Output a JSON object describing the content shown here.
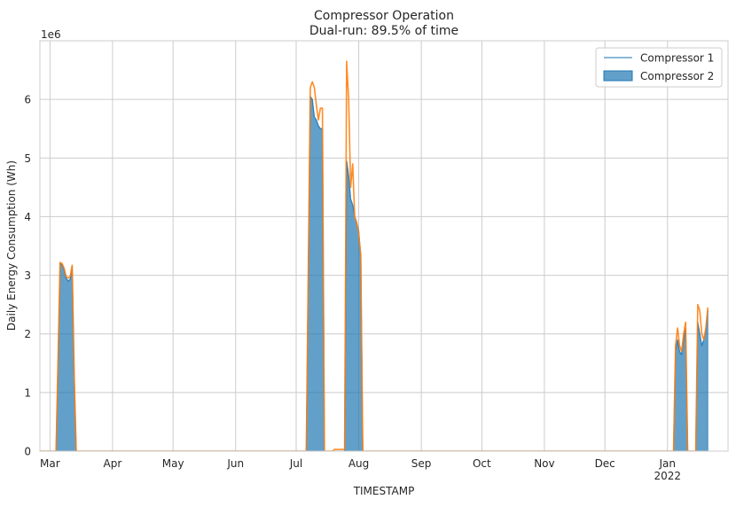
{
  "chart_data": {
    "type": "area",
    "title": "Compressor Operation",
    "subtitle": "Dual-run: 89.5% of time",
    "xlabel": "TIMESTAMP",
    "ylabel": "Daily Energy Consumption (Wh)",
    "y_offset_label": "1e6",
    "ylim": [
      0,
      7000000
    ],
    "xlim": [
      "2021-02-24",
      "2022-01-31"
    ],
    "grid": true,
    "legend_position": "top-right",
    "y_ticks": [
      {
        "value": 0,
        "label": "0"
      },
      {
        "value": 1000000,
        "label": "1"
      },
      {
        "value": 2000000,
        "label": "2"
      },
      {
        "value": 3000000,
        "label": "3"
      },
      {
        "value": 4000000,
        "label": "4"
      },
      {
        "value": 5000000,
        "label": "5"
      },
      {
        "value": 6000000,
        "label": "6"
      }
    ],
    "x_ticks": [
      {
        "date": "2021-03-01",
        "label": "Mar"
      },
      {
        "date": "2021-04-01",
        "label": "Apr"
      },
      {
        "date": "2021-05-01",
        "label": "May"
      },
      {
        "date": "2021-06-01",
        "label": "Jun"
      },
      {
        "date": "2021-07-01",
        "label": "Jul"
      },
      {
        "date": "2021-08-01",
        "label": "Aug"
      },
      {
        "date": "2021-09-01",
        "label": "Sep"
      },
      {
        "date": "2021-10-01",
        "label": "Oct"
      },
      {
        "date": "2021-11-01",
        "label": "Nov"
      },
      {
        "date": "2021-12-01",
        "label": "Dec"
      },
      {
        "date": "2022-01-01",
        "label": "Jan",
        "sublabel": "2022"
      }
    ],
    "series": [
      {
        "name": "Compressor 1",
        "style": "line",
        "color": "#1f77b4",
        "points": [
          [
            "2021-02-24",
            0
          ],
          [
            "2021-03-04",
            0
          ],
          [
            "2021-03-05",
            1500000
          ],
          [
            "2021-03-06",
            3200000
          ],
          [
            "2021-03-07",
            3180000
          ],
          [
            "2021-03-08",
            3100000
          ],
          [
            "2021-03-09",
            2950000
          ],
          [
            "2021-03-10",
            2900000
          ],
          [
            "2021-03-11",
            2930000
          ],
          [
            "2021-03-12",
            3150000
          ],
          [
            "2021-03-13",
            1200000
          ],
          [
            "2021-03-14",
            0
          ],
          [
            "2021-07-06",
            0
          ],
          [
            "2021-07-07",
            3000000
          ],
          [
            "2021-07-08",
            6050000
          ],
          [
            "2021-07-09",
            6000000
          ],
          [
            "2021-07-10",
            5700000
          ],
          [
            "2021-07-11",
            5650000
          ],
          [
            "2021-07-12",
            5550000
          ],
          [
            "2021-07-13",
            5500000
          ],
          [
            "2021-07-14",
            5500000
          ],
          [
            "2021-07-15",
            0
          ],
          [
            "2021-07-25",
            0
          ],
          [
            "2021-07-26",
            4950000
          ],
          [
            "2021-07-27",
            4700000
          ],
          [
            "2021-07-28",
            4300000
          ],
          [
            "2021-07-29",
            4200000
          ],
          [
            "2021-07-30",
            4000000
          ],
          [
            "2021-07-31",
            3900000
          ],
          [
            "2021-08-01",
            3750000
          ],
          [
            "2021-08-02",
            3300000
          ],
          [
            "2021-08-03",
            0
          ],
          [
            "2022-01-04",
            0
          ],
          [
            "2022-01-05",
            1700000
          ],
          [
            "2022-01-06",
            1900000
          ],
          [
            "2022-01-07",
            1700000
          ],
          [
            "2022-01-08",
            1650000
          ],
          [
            "2022-01-09",
            1900000
          ],
          [
            "2022-01-10",
            2100000
          ],
          [
            "2022-01-11",
            0
          ],
          [
            "2022-01-15",
            0
          ],
          [
            "2022-01-16",
            2200000
          ],
          [
            "2022-01-17",
            2000000
          ],
          [
            "2022-01-18",
            1800000
          ],
          [
            "2022-01-19",
            1900000
          ],
          [
            "2022-01-20",
            2050000
          ],
          [
            "2022-01-21",
            2400000
          ]
        ]
      },
      {
        "name": "Compressor 2",
        "style": "area",
        "color": "#1f77b4",
        "points": [
          [
            "2021-02-24",
            0
          ],
          [
            "2021-03-04",
            0
          ],
          [
            "2021-03-05",
            1500000
          ],
          [
            "2021-03-06",
            3200000
          ],
          [
            "2021-03-07",
            3180000
          ],
          [
            "2021-03-08",
            3100000
          ],
          [
            "2021-03-09",
            2950000
          ],
          [
            "2021-03-10",
            2900000
          ],
          [
            "2021-03-11",
            2930000
          ],
          [
            "2021-03-12",
            3150000
          ],
          [
            "2021-03-13",
            1200000
          ],
          [
            "2021-03-14",
            0
          ],
          [
            "2021-07-06",
            0
          ],
          [
            "2021-07-07",
            3000000
          ],
          [
            "2021-07-08",
            6050000
          ],
          [
            "2021-07-09",
            6000000
          ],
          [
            "2021-07-10",
            5700000
          ],
          [
            "2021-07-11",
            5650000
          ],
          [
            "2021-07-12",
            5550000
          ],
          [
            "2021-07-13",
            5500000
          ],
          [
            "2021-07-14",
            5500000
          ],
          [
            "2021-07-15",
            0
          ],
          [
            "2021-07-25",
            0
          ],
          [
            "2021-07-26",
            4950000
          ],
          [
            "2021-07-27",
            4700000
          ],
          [
            "2021-07-28",
            4300000
          ],
          [
            "2021-07-29",
            4200000
          ],
          [
            "2021-07-30",
            4000000
          ],
          [
            "2021-07-31",
            3900000
          ],
          [
            "2021-08-01",
            3750000
          ],
          [
            "2021-08-02",
            3300000
          ],
          [
            "2021-08-03",
            0
          ],
          [
            "2022-01-04",
            0
          ],
          [
            "2022-01-05",
            1700000
          ],
          [
            "2022-01-06",
            1900000
          ],
          [
            "2022-01-07",
            1700000
          ],
          [
            "2022-01-08",
            1650000
          ],
          [
            "2022-01-09",
            1900000
          ],
          [
            "2022-01-10",
            2100000
          ],
          [
            "2022-01-11",
            0
          ],
          [
            "2022-01-15",
            0
          ],
          [
            "2022-01-16",
            2200000
          ],
          [
            "2022-01-17",
            2000000
          ],
          [
            "2022-01-18",
            1800000
          ],
          [
            "2022-01-19",
            1900000
          ],
          [
            "2022-01-20",
            2050000
          ],
          [
            "2022-01-21",
            2400000
          ]
        ]
      },
      {
        "style": "line",
        "color": "#ff7f0e",
        "points": [
          [
            "2021-02-24",
            0
          ],
          [
            "2021-03-04",
            0
          ],
          [
            "2021-03-05",
            1600000
          ],
          [
            "2021-03-06",
            3220000
          ],
          [
            "2021-03-07",
            3200000
          ],
          [
            "2021-03-08",
            3120000
          ],
          [
            "2021-03-09",
            2980000
          ],
          [
            "2021-03-10",
            2950000
          ],
          [
            "2021-03-11",
            2980000
          ],
          [
            "2021-03-12",
            3170000
          ],
          [
            "2021-03-13",
            1300000
          ],
          [
            "2021-03-14",
            0
          ],
          [
            "2021-07-06",
            0
          ],
          [
            "2021-07-07",
            3100000
          ],
          [
            "2021-07-08",
            6200000
          ],
          [
            "2021-07-09",
            6300000
          ],
          [
            "2021-07-10",
            6200000
          ],
          [
            "2021-07-11",
            5900000
          ],
          [
            "2021-07-12",
            5650000
          ],
          [
            "2021-07-13",
            5850000
          ],
          [
            "2021-07-14",
            5850000
          ],
          [
            "2021-07-15",
            0
          ],
          [
            "2021-07-19",
            0
          ],
          [
            "2021-07-20",
            30000
          ],
          [
            "2021-07-25",
            30000
          ],
          [
            "2021-07-26",
            6650000
          ],
          [
            "2021-07-27",
            6000000
          ],
          [
            "2021-07-28",
            4500000
          ],
          [
            "2021-07-29",
            4900000
          ],
          [
            "2021-07-30",
            4000000
          ],
          [
            "2021-07-31",
            3900000
          ],
          [
            "2021-08-01",
            3700000
          ],
          [
            "2021-08-02",
            3350000
          ],
          [
            "2021-08-03",
            0
          ],
          [
            "2022-01-04",
            0
          ],
          [
            "2022-01-05",
            1800000
          ],
          [
            "2022-01-06",
            2100000
          ],
          [
            "2022-01-07",
            1800000
          ],
          [
            "2022-01-08",
            1700000
          ],
          [
            "2022-01-09",
            2000000
          ],
          [
            "2022-01-10",
            2200000
          ],
          [
            "2022-01-11",
            0
          ],
          [
            "2022-01-15",
            0
          ],
          [
            "2022-01-16",
            2500000
          ],
          [
            "2022-01-17",
            2400000
          ],
          [
            "2022-01-18",
            2000000
          ],
          [
            "2022-01-19",
            1900000
          ],
          [
            "2022-01-20",
            2100000
          ],
          [
            "2022-01-21",
            2450000
          ]
        ]
      }
    ]
  }
}
